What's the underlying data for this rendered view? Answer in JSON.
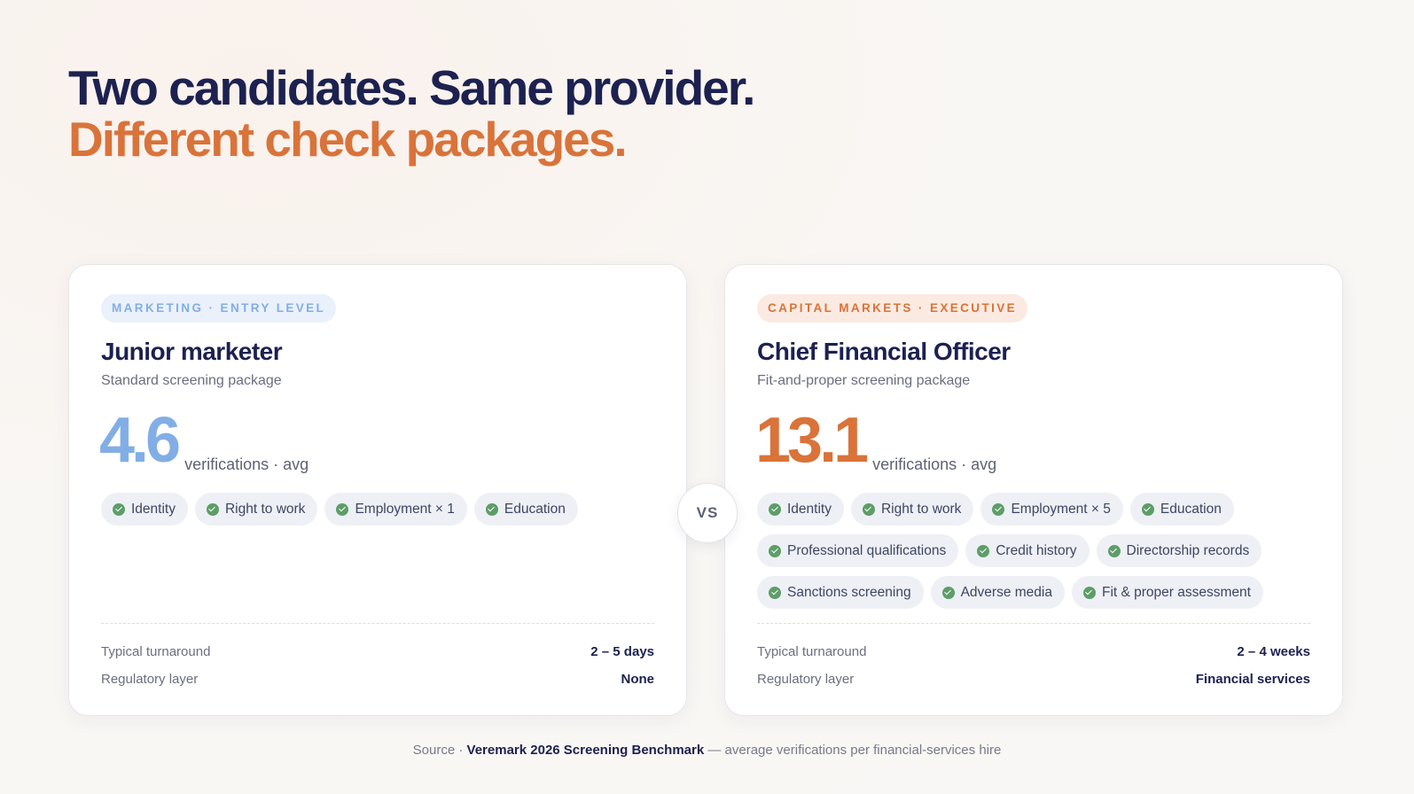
{
  "headline": {
    "line1": "Two candidates. Same provider.",
    "line2": "Different check packages."
  },
  "cards": [
    {
      "tag": "MARKETING · ENTRY LEVEL",
      "title": "Junior marketer",
      "subtitle": "Standard screening package",
      "stat_value": "4.6",
      "stat_unit": "verifications · avg",
      "checks": [
        "Identity",
        "Right to work",
        "Employment × 1",
        "Education"
      ],
      "turnaround_label": "Typical turnaround",
      "turnaround_value": "2 – 5 days",
      "regulatory_label": "Regulatory layer",
      "regulatory_value": "None"
    },
    {
      "tag": "CAPITAL MARKETS · EXECUTIVE",
      "title": "Chief Financial Officer",
      "subtitle": "Fit-and-proper screening package",
      "stat_value": "13.1",
      "stat_unit": "verifications · avg",
      "checks": [
        "Identity",
        "Right to work",
        "Employment × 5",
        "Education",
        "Professional qualifications",
        "Credit history",
        "Directorship records",
        "Sanctions screening",
        "Adverse media",
        "Fit & proper assessment"
      ],
      "turnaround_label": "Typical turnaround",
      "turnaround_value": "2 – 4 weeks",
      "regulatory_label": "Regulatory layer",
      "regulatory_value": "Financial services"
    }
  ],
  "vs_label": "VS",
  "source": {
    "prefix": "Source ·",
    "name": "Veremark 2026 Screening Benchmark",
    "suffix": "— average verifications per financial-services hire"
  },
  "colors": {
    "navy": "#1c2150",
    "orange": "#d9733a",
    "blue": "#82aee6",
    "check_green": "#5d9e68"
  },
  "icons": {
    "check": "check-circle-icon"
  }
}
